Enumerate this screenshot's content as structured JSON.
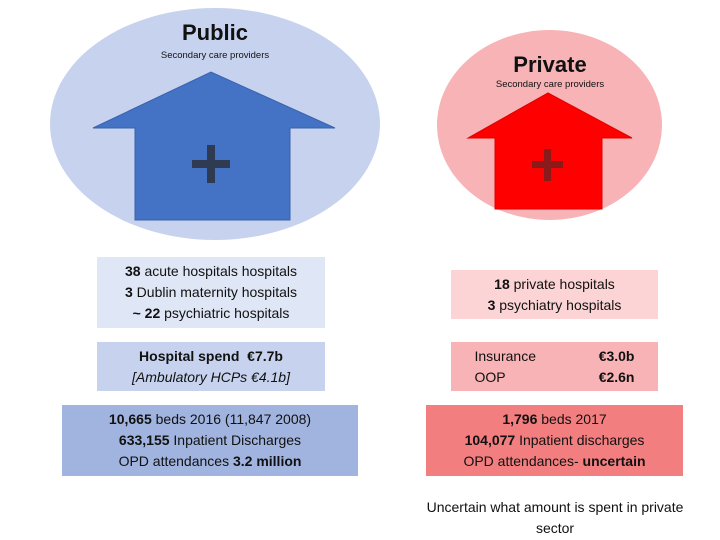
{
  "public": {
    "title": "Public",
    "subtitle": "Secondary care providers",
    "colors": {
      "ellipse": "#c7d3ee",
      "house": "#4472c4",
      "plus": "#2f3b52"
    },
    "facilities": {
      "line1": {
        "num": "38",
        "text": " acute hospitals hospitals"
      },
      "line2": {
        "num": "3",
        "text": " Dublin maternity hospitals"
      },
      "line3": {
        "num": "~ 22",
        "text": " psychiatric hospitals"
      }
    },
    "spend": {
      "label": "Hospital spend  €7.7b",
      "sub": "[Ambulatory HCPs €4.1b]"
    },
    "activity": {
      "line1": {
        "num": "10,665",
        "text": " beds 2016 (11,847 2008)"
      },
      "line2": {
        "num": "633,155",
        "text": " Inpatient Discharges"
      },
      "line3": {
        "text": "OPD attendances ",
        "num": "3.2 million"
      }
    }
  },
  "private": {
    "title": "Private",
    "subtitle": "Secondary care providers",
    "colors": {
      "ellipse": "#f7b3b5",
      "house": "#ff0000",
      "plus": "#8b1a1a"
    },
    "facilities": {
      "line1": {
        "num": "18",
        "text": " private hospitals"
      },
      "line2": {
        "num": "3",
        "text": " psychiatry hospitals"
      }
    },
    "spend": {
      "row1": {
        "label": "Insurance",
        "value": "€3.0b"
      },
      "row2": {
        "label": "OOP",
        "value": "€2.6n"
      }
    },
    "activity": {
      "line1": {
        "num": "1,796",
        "text": " beds 2017"
      },
      "line2": {
        "num": "104,077",
        "text": " Inpatient discharges"
      },
      "line3": {
        "text": "OPD attendances- ",
        "num": "uncertain"
      }
    },
    "note": "Uncertain what amount is spent in private sector"
  }
}
